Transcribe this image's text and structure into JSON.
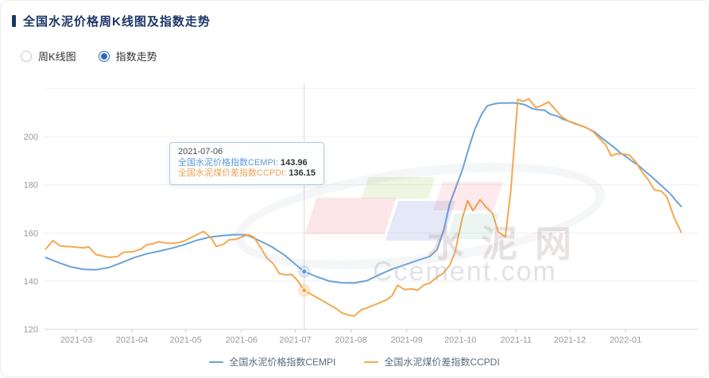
{
  "header": {
    "title": "全国水泥价格周K线图及指数走势"
  },
  "controls": {
    "radios": [
      {
        "label": "周K线图",
        "selected": false
      },
      {
        "label": "指数走势",
        "selected": true
      }
    ]
  },
  "tooltip": {
    "date": "2021-07-06",
    "rows": [
      {
        "label": "全国水泥价格指数CEMPI:",
        "value": "143.96"
      },
      {
        "label": "全国水泥煤价差指数CCPDI:",
        "value": "136.15"
      }
    ]
  },
  "watermark": {
    "cn": "水泥网",
    "en": "Ccement.com"
  },
  "colors": {
    "accent_blue": "#6aa2d8",
    "accent_orange": "#f5a84e",
    "title": "#1d3668",
    "radio_selected": "#2a6bb5",
    "axis_text": "#999999",
    "grid": "#f0f0f0"
  },
  "chart_data": {
    "type": "line",
    "title": "全国水泥价格周K线图及指数走势",
    "xlabel": "",
    "ylabel": "",
    "ylim": [
      118,
      222
    ],
    "grid": true,
    "legend_position": "bottom",
    "y_ticks": [
      200,
      180,
      160,
      140,
      120
    ],
    "top_gridline": 220,
    "x_ticks": [
      {
        "label": "2021-03",
        "date": "2021-03-01"
      },
      {
        "label": "2021-04",
        "date": "2021-04-01"
      },
      {
        "label": "2021-05",
        "date": "2021-05-01"
      },
      {
        "label": "2021-06",
        "date": "2021-06-01"
      },
      {
        "label": "2021-07",
        "date": "2021-07-01"
      },
      {
        "label": "2021-08",
        "date": "2021-08-01"
      },
      {
        "label": "2021-09",
        "date": "2021-09-01"
      },
      {
        "label": "2021-10",
        "date": "2021-10-01"
      },
      {
        "label": "2021-11",
        "date": "2021-11-01"
      },
      {
        "label": "2021-12",
        "date": "2021-12-01"
      },
      {
        "label": "2022-01",
        "date": "2022-01-01"
      }
    ],
    "highlight": {
      "date": "2021-07-06",
      "cempi": 143.96,
      "ccpdi": 136.15
    },
    "series": [
      {
        "id": "cempi",
        "name": "全国水泥价格指数CEMPI",
        "color": "#6aa2d8",
        "points": [
          [
            "2021-02-12",
            149.8
          ],
          [
            "2021-02-19",
            147.7
          ],
          [
            "2021-02-26",
            145.9
          ],
          [
            "2021-03-05",
            144.9
          ],
          [
            "2021-03-12",
            144.7
          ],
          [
            "2021-03-19",
            145.6
          ],
          [
            "2021-03-26",
            147.6
          ],
          [
            "2021-04-02",
            149.7
          ],
          [
            "2021-04-09",
            151.3
          ],
          [
            "2021-04-16",
            152.4
          ],
          [
            "2021-04-23",
            153.6
          ],
          [
            "2021-04-30",
            155.1
          ],
          [
            "2021-05-07",
            156.9
          ],
          [
            "2021-05-14",
            158.2
          ],
          [
            "2021-05-21",
            158.9
          ],
          [
            "2021-05-28",
            159.3
          ],
          [
            "2021-06-04",
            159.2
          ],
          [
            "2021-06-11",
            156.8
          ],
          [
            "2021-06-18",
            154.2
          ],
          [
            "2021-06-25",
            150.8
          ],
          [
            "2021-07-02",
            146.4
          ],
          [
            "2021-07-06",
            143.96
          ],
          [
            "2021-07-13",
            141.8
          ],
          [
            "2021-07-20",
            140.0
          ],
          [
            "2021-07-27",
            139.3
          ],
          [
            "2021-08-03",
            139.2
          ],
          [
            "2021-08-10",
            140.2
          ],
          [
            "2021-08-17",
            142.7
          ],
          [
            "2021-08-24",
            145.0
          ],
          [
            "2021-08-31",
            146.8
          ],
          [
            "2021-09-07",
            148.6
          ],
          [
            "2021-09-14",
            150.3
          ],
          [
            "2021-09-18",
            153.0
          ],
          [
            "2021-09-22",
            162.0
          ],
          [
            "2021-09-25",
            172.0
          ],
          [
            "2021-09-29",
            180.0
          ],
          [
            "2021-10-02",
            186.0
          ],
          [
            "2021-10-06",
            196.0
          ],
          [
            "2021-10-09",
            203.0
          ],
          [
            "2021-10-13",
            209.5
          ],
          [
            "2021-10-16",
            212.8
          ],
          [
            "2021-10-20",
            213.6
          ],
          [
            "2021-10-23",
            213.9
          ],
          [
            "2021-10-27",
            213.9
          ],
          [
            "2021-10-30",
            214.0
          ],
          [
            "2021-11-03",
            213.7
          ],
          [
            "2021-11-06",
            213.2
          ],
          [
            "2021-11-10",
            211.6
          ],
          [
            "2021-11-13",
            211.2
          ],
          [
            "2021-11-17",
            210.9
          ],
          [
            "2021-11-20",
            209.3
          ],
          [
            "2021-11-24",
            208.5
          ],
          [
            "2021-11-27",
            207.3
          ],
          [
            "2021-12-01",
            206.2
          ],
          [
            "2021-12-04",
            205.3
          ],
          [
            "2021-12-08",
            204.3
          ],
          [
            "2021-12-11",
            203.4
          ],
          [
            "2021-12-15",
            201.8
          ],
          [
            "2021-12-18",
            199.9
          ],
          [
            "2021-12-22",
            197.6
          ],
          [
            "2021-12-25",
            195.9
          ],
          [
            "2021-12-29",
            193.3
          ],
          [
            "2022-01-01",
            191.8
          ],
          [
            "2022-01-05",
            189.6
          ],
          [
            "2022-01-08",
            188.2
          ],
          [
            "2022-01-12",
            185.5
          ],
          [
            "2022-01-15",
            183.7
          ],
          [
            "2022-01-19",
            181.0
          ],
          [
            "2022-01-22",
            179.0
          ],
          [
            "2022-01-26",
            176.2
          ],
          [
            "2022-01-29",
            173.5
          ],
          [
            "2022-02-01",
            171.0
          ]
        ]
      },
      {
        "id": "ccpdi",
        "name": "全国水泥煤价差指数CCPDI",
        "color": "#f5a84e",
        "points": [
          [
            "2021-02-12",
            153.4
          ],
          [
            "2021-02-16",
            156.8
          ],
          [
            "2021-02-20",
            154.6
          ],
          [
            "2021-02-26",
            154.3
          ],
          [
            "2021-03-05",
            153.8
          ],
          [
            "2021-03-08",
            154.2
          ],
          [
            "2021-03-12",
            151.0
          ],
          [
            "2021-03-19",
            149.9
          ],
          [
            "2021-03-24",
            150.2
          ],
          [
            "2021-03-27",
            151.9
          ],
          [
            "2021-04-02",
            152.3
          ],
          [
            "2021-04-06",
            153.3
          ],
          [
            "2021-04-09",
            155.0
          ],
          [
            "2021-04-13",
            155.6
          ],
          [
            "2021-04-16",
            156.4
          ],
          [
            "2021-04-20",
            155.8
          ],
          [
            "2021-04-23",
            155.7
          ],
          [
            "2021-04-27",
            156.0
          ],
          [
            "2021-04-30",
            156.6
          ],
          [
            "2021-05-04",
            158.1
          ],
          [
            "2021-05-08",
            159.6
          ],
          [
            "2021-05-11",
            160.6
          ],
          [
            "2021-05-15",
            158.0
          ],
          [
            "2021-05-18",
            154.4
          ],
          [
            "2021-05-22",
            155.3
          ],
          [
            "2021-05-25",
            157.1
          ],
          [
            "2021-05-29",
            157.4
          ],
          [
            "2021-06-01",
            158.3
          ],
          [
            "2021-06-05",
            159.3
          ],
          [
            "2021-06-08",
            158.2
          ],
          [
            "2021-06-12",
            153.5
          ],
          [
            "2021-06-15",
            149.8
          ],
          [
            "2021-06-19",
            147.0
          ],
          [
            "2021-06-22",
            143.2
          ],
          [
            "2021-06-26",
            142.5
          ],
          [
            "2021-06-29",
            142.8
          ],
          [
            "2021-07-02",
            140.5
          ],
          [
            "2021-07-06",
            136.15
          ],
          [
            "2021-07-10",
            134.5
          ],
          [
            "2021-07-13",
            133.2
          ],
          [
            "2021-07-17",
            131.5
          ],
          [
            "2021-07-20",
            130.2
          ],
          [
            "2021-07-24",
            128.5
          ],
          [
            "2021-07-27",
            126.8
          ],
          [
            "2021-07-31",
            125.8
          ],
          [
            "2021-08-03",
            125.6
          ],
          [
            "2021-08-07",
            128.2
          ],
          [
            "2021-08-10",
            128.9
          ],
          [
            "2021-08-14",
            130.1
          ],
          [
            "2021-08-17",
            131.0
          ],
          [
            "2021-08-21",
            132.3
          ],
          [
            "2021-08-24",
            134.0
          ],
          [
            "2021-08-27",
            138.3
          ],
          [
            "2021-08-31",
            136.5
          ],
          [
            "2021-09-04",
            136.8
          ],
          [
            "2021-09-07",
            136.2
          ],
          [
            "2021-09-11",
            138.5
          ],
          [
            "2021-09-14",
            139.2
          ],
          [
            "2021-09-18",
            141.7
          ],
          [
            "2021-09-21",
            143.0
          ],
          [
            "2021-09-25",
            146.5
          ],
          [
            "2021-09-28",
            152.0
          ],
          [
            "2021-10-02",
            166.0
          ],
          [
            "2021-10-05",
            173.4
          ],
          [
            "2021-10-08",
            169.2
          ],
          [
            "2021-10-10",
            171.5
          ],
          [
            "2021-10-12",
            173.8
          ],
          [
            "2021-10-15",
            171.0
          ],
          [
            "2021-10-19",
            168.0
          ],
          [
            "2021-10-22",
            160.5
          ],
          [
            "2021-10-26",
            158.4
          ],
          [
            "2021-10-29",
            177.0
          ],
          [
            "2021-11-02",
            215.5
          ],
          [
            "2021-11-05",
            214.6
          ],
          [
            "2021-11-08",
            215.7
          ],
          [
            "2021-11-12",
            212.1
          ],
          [
            "2021-11-15",
            212.8
          ],
          [
            "2021-11-19",
            214.4
          ],
          [
            "2021-11-22",
            212.0
          ],
          [
            "2021-11-26",
            208.6
          ],
          [
            "2021-11-30",
            206.5
          ],
          [
            "2021-12-03",
            205.8
          ],
          [
            "2021-12-07",
            204.6
          ],
          [
            "2021-12-10",
            203.8
          ],
          [
            "2021-12-14",
            202.0
          ],
          [
            "2021-12-17",
            199.7
          ],
          [
            "2021-12-21",
            196.5
          ],
          [
            "2021-12-24",
            192.0
          ],
          [
            "2021-12-27",
            192.9
          ],
          [
            "2021-12-31",
            192.7
          ],
          [
            "2022-01-03",
            192.4
          ],
          [
            "2022-01-07",
            189.3
          ],
          [
            "2022-01-10",
            185.5
          ],
          [
            "2022-01-14",
            181.7
          ],
          [
            "2022-01-17",
            177.9
          ],
          [
            "2022-01-21",
            177.3
          ],
          [
            "2022-01-24",
            175.0
          ],
          [
            "2022-01-28",
            166.5
          ],
          [
            "2022-02-01",
            160.3
          ]
        ]
      }
    ]
  }
}
